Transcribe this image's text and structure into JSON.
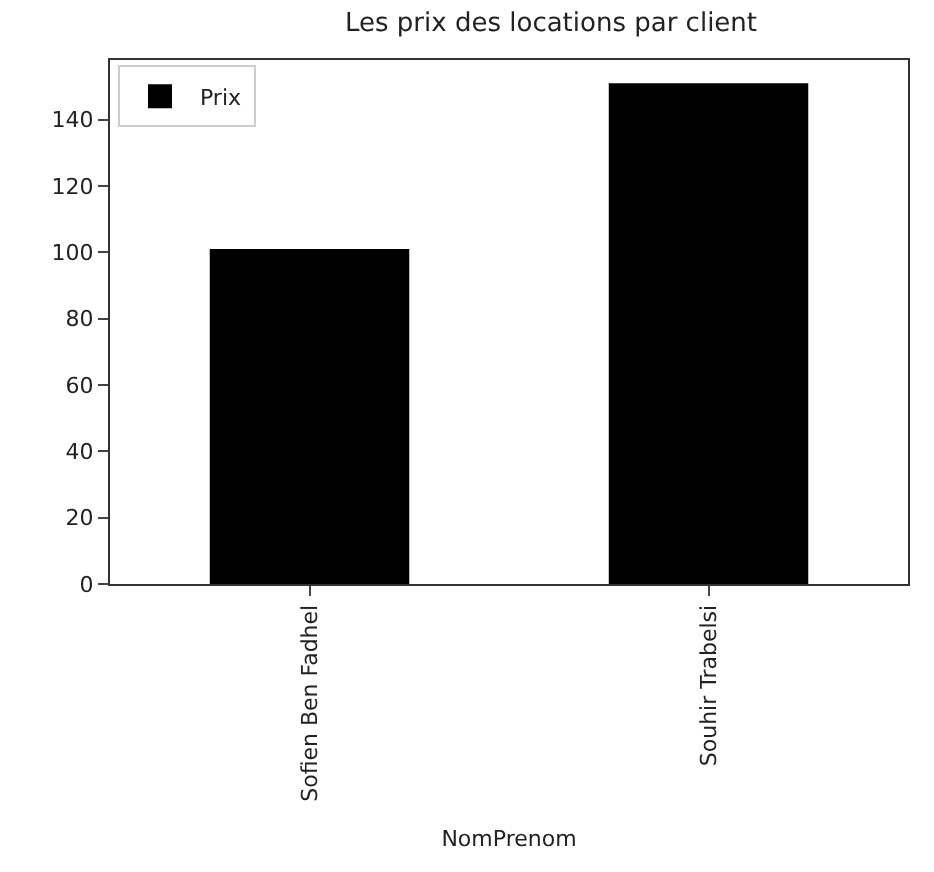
{
  "chart_data": {
    "type": "bar",
    "title": "Les prix des locations par client",
    "xlabel": "NomPrenom",
    "categories": [
      "Sofien Ben Fadhel",
      "Souhir Trabelsi"
    ],
    "series": [
      {
        "name": "Prix",
        "color": "#000000",
        "values": [
          101,
          151
        ]
      }
    ],
    "ylim": [
      0,
      158
    ],
    "yticks": [
      0,
      20,
      40,
      60,
      80,
      100,
      120,
      140
    ],
    "legend": "top left"
  }
}
